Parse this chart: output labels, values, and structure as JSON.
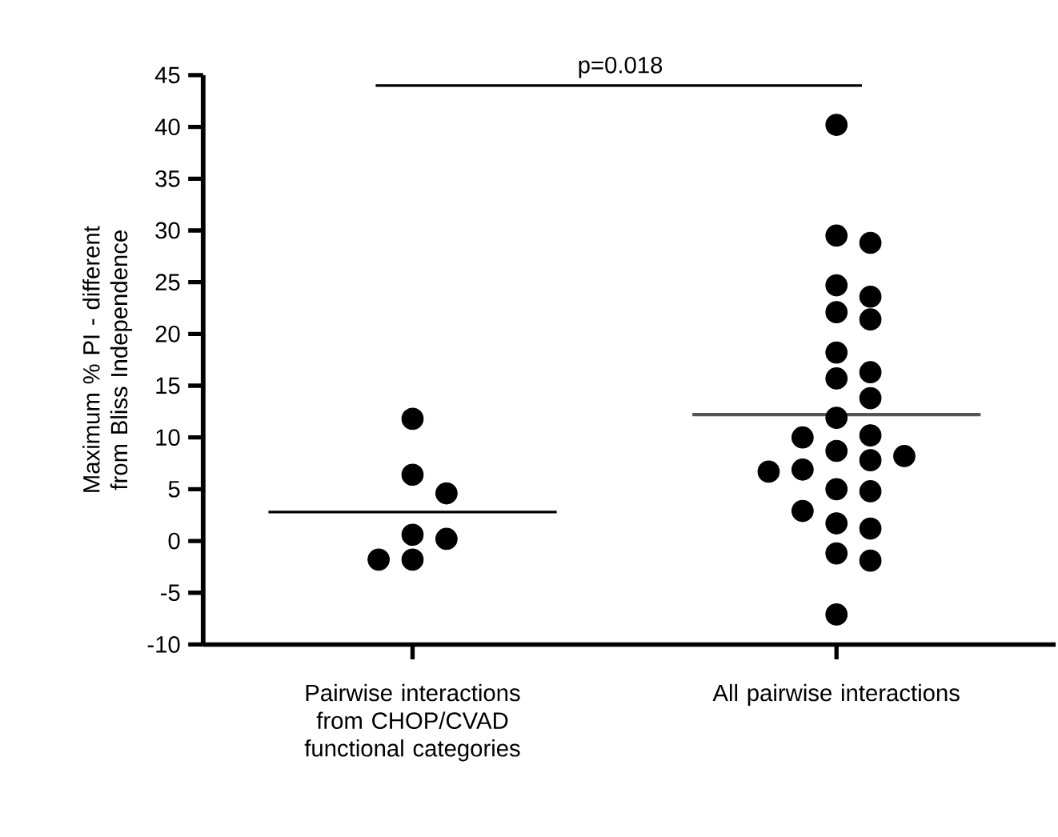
{
  "chart_data": {
    "type": "scatter",
    "ylabel": "Maximum % PI - different from Bliss Independence",
    "annotations": [
      "p=0.018"
    ],
    "categories": [
      "Pairwise interactions from CHOP/CVAD functional categories",
      "All pairwise interactions"
    ],
    "ylim": [
      -10,
      45
    ],
    "yticks": [
      -10,
      -5,
      0,
      5,
      10,
      15,
      20,
      25,
      30,
      35,
      40,
      45
    ],
    "marker": "circle",
    "series": [
      {
        "type": "scatter",
        "color": "#000000",
        "x": [
          "Pairwise interactions from CHOP/CVAD functional categories",
          "Pairwise interactions from CHOP/CVAD functional categories",
          "Pairwise interactions from CHOP/CVAD functional categories",
          "Pairwise interactions from CHOP/CVAD functional categories",
          "Pairwise interactions from CHOP/CVAD functional categories",
          "Pairwise interactions from CHOP/CVAD functional categories",
          "Pairwise interactions from CHOP/CVAD functional categories"
        ],
        "values": [
          11.8,
          6.4,
          4.6,
          0.6,
          0.2,
          -1.8,
          -1.8
        ]
      },
      {
        "type": "scatter",
        "color": "#000000",
        "x": [
          "All pairwise interactions",
          "All pairwise interactions",
          "All pairwise interactions",
          "All pairwise interactions",
          "All pairwise interactions",
          "All pairwise interactions",
          "All pairwise interactions",
          "All pairwise interactions",
          "All pairwise interactions",
          "All pairwise interactions",
          "All pairwise interactions",
          "All pairwise interactions",
          "All pairwise interactions",
          "All pairwise interactions",
          "All pairwise interactions",
          "All pairwise interactions",
          "All pairwise interactions",
          "All pairwise interactions",
          "All pairwise interactions",
          "All pairwise interactions",
          "All pairwise interactions",
          "All pairwise interactions",
          "All pairwise interactions",
          "All pairwise interactions",
          "All pairwise interactions",
          "All pairwise interactions",
          "All pairwise interactions"
        ],
        "values": [
          40.2,
          29.5,
          28.8,
          24.7,
          23.6,
          22.1,
          21.4,
          18.2,
          16.3,
          15.7,
          13.8,
          11.9,
          10.2,
          10.0,
          8.7,
          8.2,
          7.8,
          6.9,
          6.7,
          5.0,
          4.8,
          2.9,
          1.7,
          1.2,
          -1.2,
          -1.9,
          -7.1
        ]
      },
      {
        "type": "box",
        "colors": [
          "#000000",
          "#555555"
        ],
        "boxes": [
          {
            "low": 2.8,
            "q1": 2.8,
            "median": 2.8,
            "q3": 2.8,
            "high": 2.8
          },
          {
            "low": 12.2,
            "q1": 12.2,
            "median": 12.2,
            "q3": 12.2,
            "high": 12.2
          }
        ]
      }
    ]
  }
}
